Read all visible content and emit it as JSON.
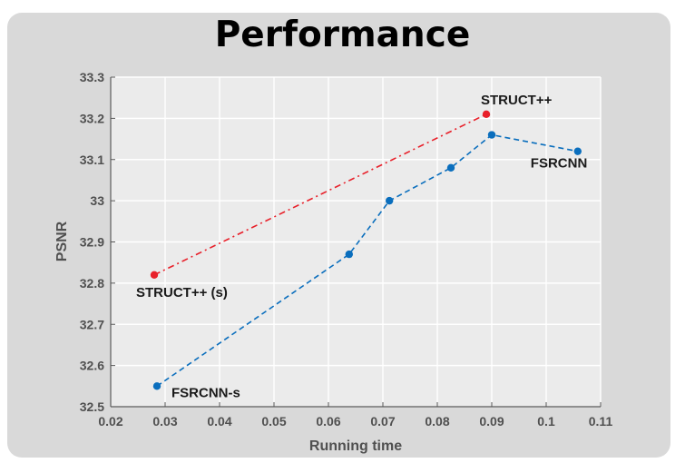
{
  "chart_data": {
    "type": "line",
    "title": "Performance",
    "xlabel": "Running time",
    "ylabel": "PSNR",
    "xlim": [
      0.02,
      0.11
    ],
    "ylim": [
      32.5,
      33.3
    ],
    "xticks": [
      "0.02",
      "0.03",
      "0.04",
      "0.05",
      "0.06",
      "0.07",
      "0.08",
      "0.09",
      "0.1",
      "0.11"
    ],
    "yticks": [
      "32.5",
      "32.6",
      "32.7",
      "32.8",
      "32.9",
      "33",
      "33.1",
      "33.2",
      "33.3"
    ],
    "grid": true,
    "series": [
      {
        "color": "#e8202a",
        "line_style": "dash-dot",
        "points": [
          [
            0.028,
            32.82
          ],
          [
            0.089,
            33.21
          ]
        ]
      },
      {
        "color": "#0a6ebd",
        "line_style": "dashed",
        "points": [
          [
            0.0285,
            32.55
          ],
          [
            0.0638,
            32.87
          ],
          [
            0.0712,
            33.0
          ],
          [
            0.0825,
            33.08
          ],
          [
            0.09,
            33.16
          ],
          [
            0.1058,
            33.12
          ]
        ]
      }
    ],
    "annotations": [
      {
        "text": "STRUCT++ (s)",
        "x": 0.028,
        "y": 32.82
      },
      {
        "text": "STRUCT++",
        "x": 0.089,
        "y": 33.21
      },
      {
        "text": "FSRCNN",
        "x": 0.1058,
        "y": 33.12
      },
      {
        "text": "FSRCNN-s",
        "x": 0.0285,
        "y": 32.55
      }
    ]
  }
}
